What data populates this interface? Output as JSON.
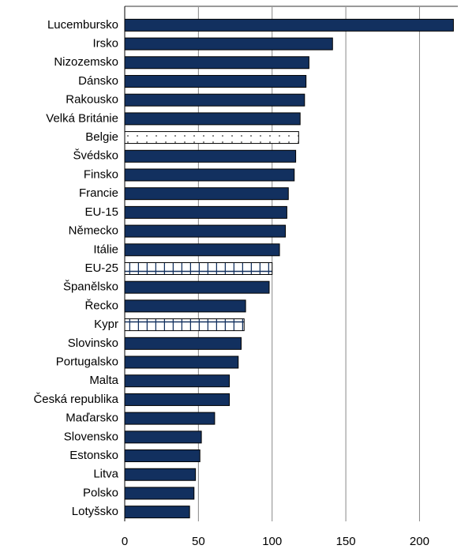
{
  "chart_data": {
    "type": "hbar",
    "categories": [
      "Lucembursko",
      "Irsko",
      "Nizozemsko",
      "Dánsko",
      "Rakousko",
      "Velká Británie",
      "Belgie",
      "Švédsko",
      "Finsko",
      "Francie",
      "EU-15",
      "Německo",
      "Itálie",
      "EU-25",
      "Španělsko",
      "Řecko",
      "Kypr",
      "Slovinsko",
      "Portugalsko",
      "Malta",
      "Česká republika",
      "Maďarsko",
      "Slovensko",
      "Estonsko",
      "Litva",
      "Polsko",
      "Lotyšsko"
    ],
    "values": [
      223,
      141,
      125,
      123,
      122,
      119,
      118,
      116,
      115,
      111,
      110,
      109,
      105,
      100,
      98,
      82,
      81,
      79,
      77,
      71,
      71,
      61,
      52,
      51,
      48,
      47,
      44
    ],
    "bar_styles": [
      "solid",
      "solid",
      "solid",
      "solid",
      "solid",
      "solid",
      "dots",
      "solid",
      "solid",
      "solid",
      "solid",
      "solid",
      "solid",
      "grid",
      "solid",
      "solid",
      "grid",
      "solid",
      "solid",
      "solid",
      "solid",
      "solid",
      "solid",
      "solid",
      "solid",
      "solid",
      "solid"
    ],
    "color": "#12305f",
    "xlim": [
      0,
      226
    ],
    "xticks": [
      0,
      50,
      100,
      150,
      200
    ],
    "grid": true
  }
}
